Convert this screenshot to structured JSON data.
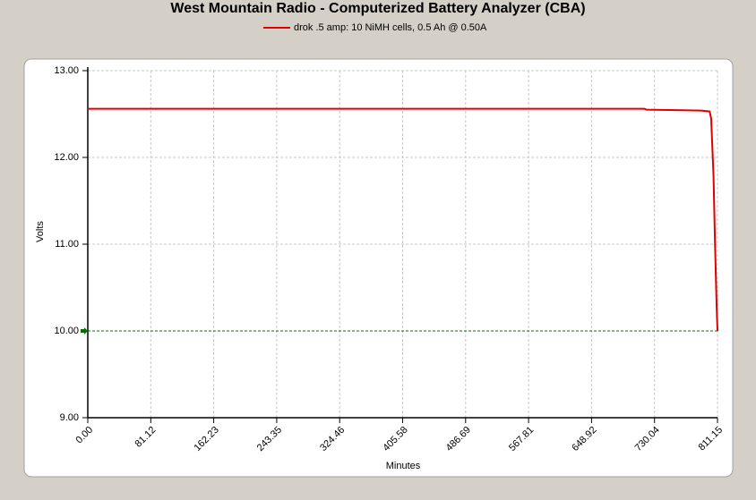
{
  "chart_data": {
    "type": "line",
    "title": "West Mountain Radio - Computerized Battery Analyzer (CBA)",
    "x_label": "Minutes",
    "y_label": "Volts",
    "x": [
      0,
      717,
      720,
      790,
      801,
      803,
      806,
      808,
      810,
      811.15
    ],
    "series": [
      {
        "name": "drok .5 amp: 10 NiMH cells, 0.5 Ah @ 0.50A",
        "color": "#e00000",
        "values": [
          12.56,
          12.56,
          12.55,
          12.54,
          12.53,
          12.45,
          11.8,
          11.0,
          10.3,
          10.0
        ]
      }
    ],
    "cutoff": 10,
    "cutoff_color": "#007000",
    "xlim": [
      0,
      811.15
    ],
    "xticks": [
      {
        "value": 0,
        "label": "0.00"
      },
      81.12,
      162.23,
      243.35,
      324.46,
      405.58,
      486.69,
      567.81,
      648.92,
      730.04,
      811.15
    ],
    "ylim": [
      9,
      13
    ],
    "yticks": [
      {
        "value": 9,
        "label": "9.00"
      },
      {
        "value": 10,
        "label": "10.00"
      },
      {
        "value": 11,
        "label": "11.00"
      },
      {
        "value": 12,
        "label": "12.00"
      },
      {
        "value": 13,
        "label": "13.00"
      }
    ],
    "grid": true
  }
}
